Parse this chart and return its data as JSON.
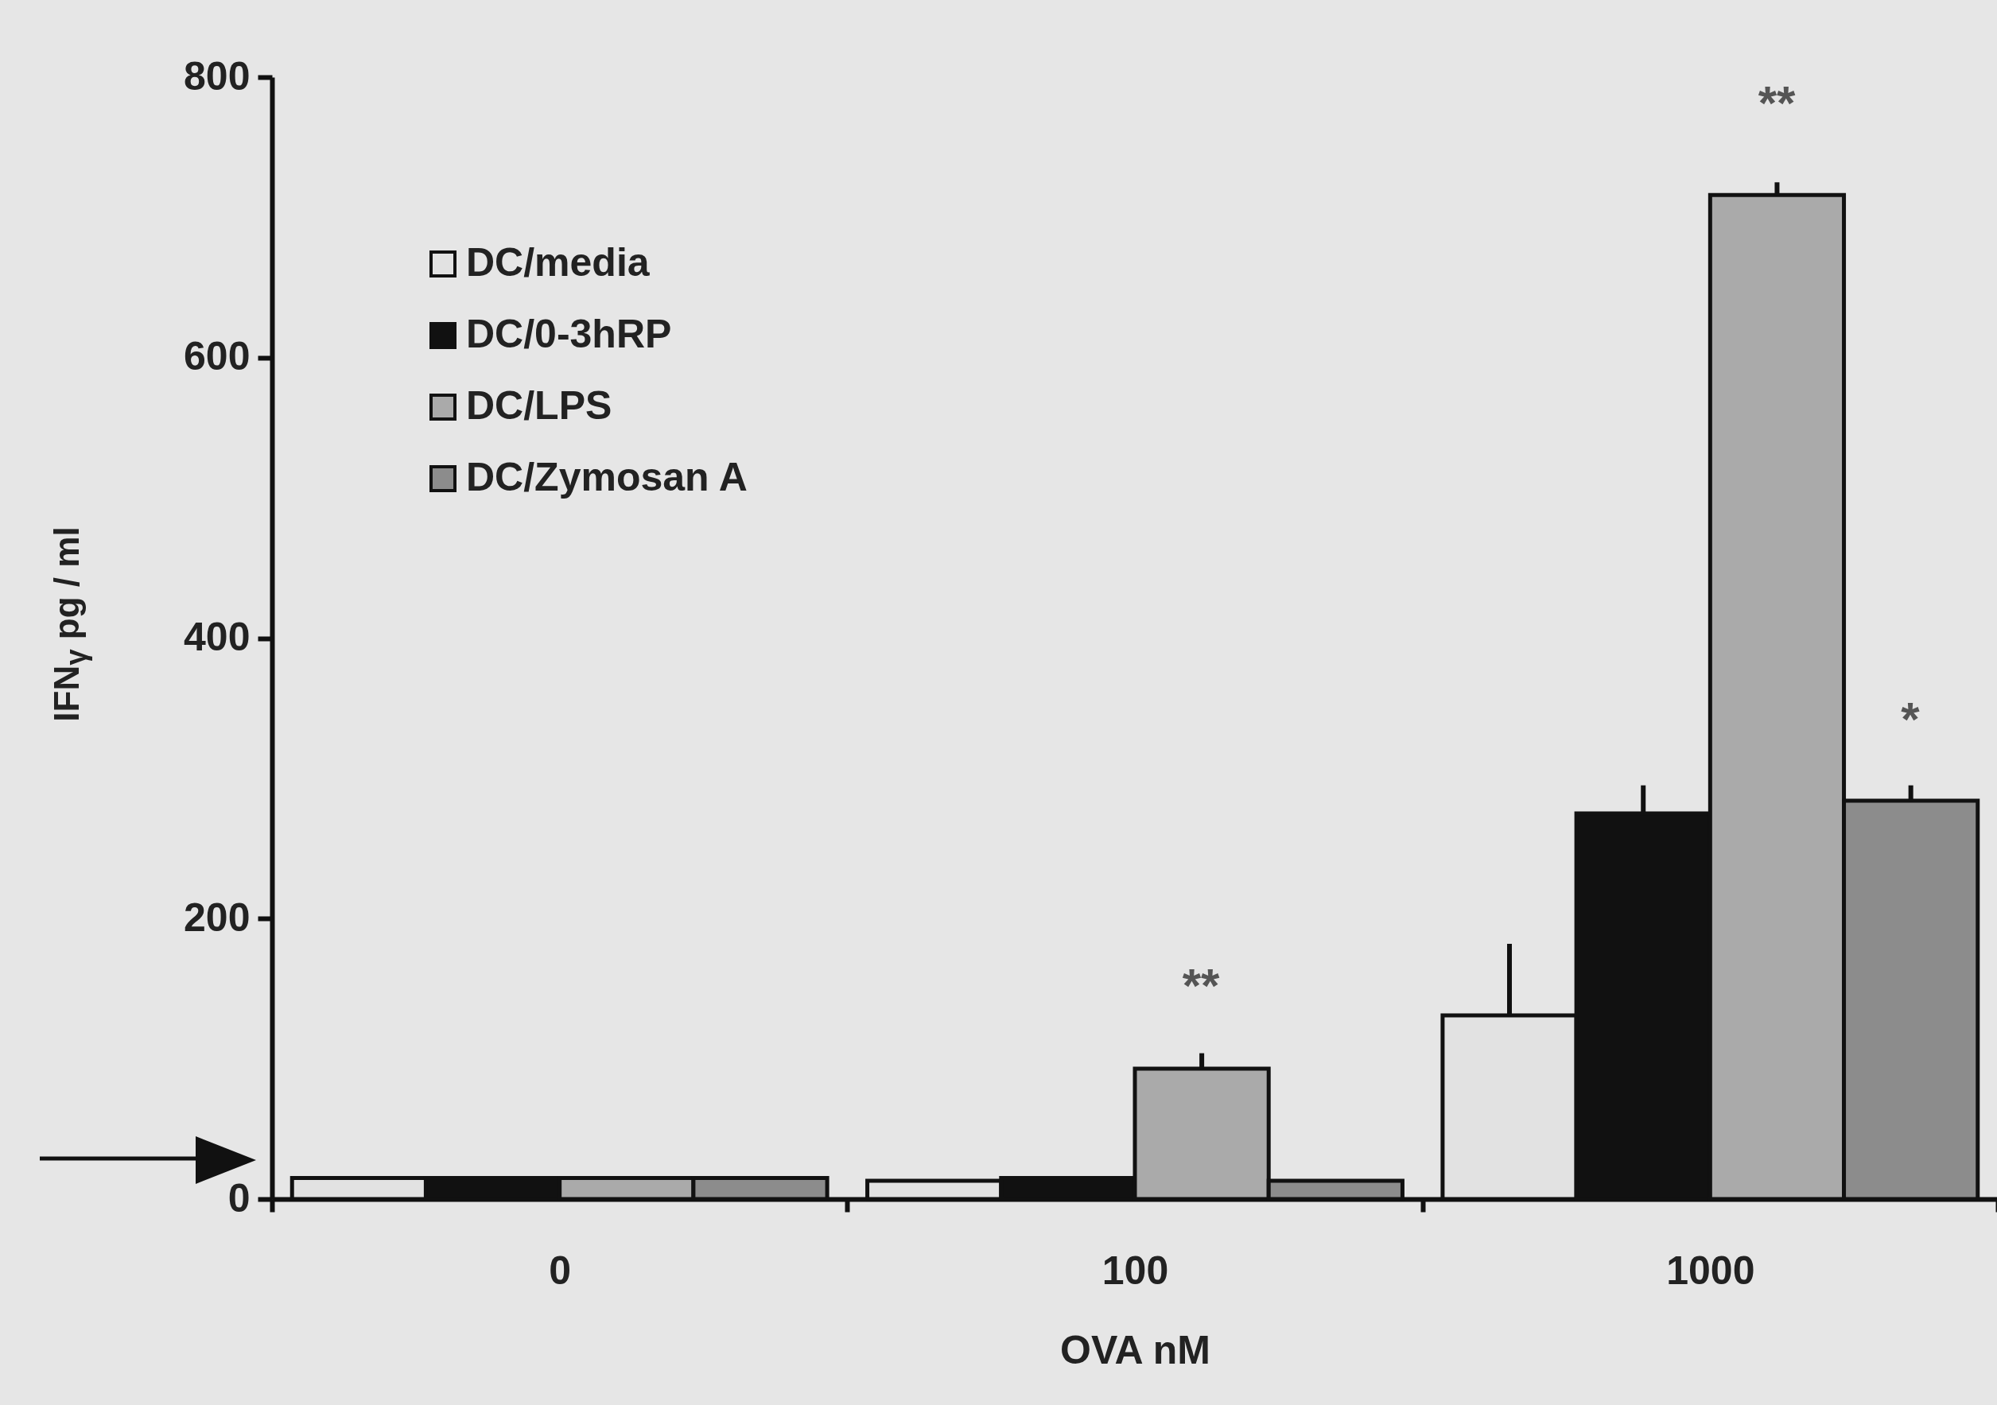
{
  "chart_data": {
    "type": "bar",
    "xlabel": "OVA nM",
    "ylabel": "IFN$_{γ}$ pg / ml",
    "categories": [
      "0",
      "100",
      "1000"
    ],
    "series": [
      {
        "name": "DC/media",
        "color": "#e2e2e2",
        "values": [
          15,
          13,
          131
        ],
        "errors": [
          null,
          null,
          [
            131,
            182
          ]
        ]
      },
      {
        "name": "DC/0-3hRP",
        "color": "#111111",
        "values": [
          15,
          15,
          275
        ],
        "errors": [
          null,
          null,
          [
            275,
            295
          ]
        ]
      },
      {
        "name": "DC/LPS",
        "color": "#aaaaaa",
        "values": [
          15,
          93,
          716
        ],
        "errors": [
          null,
          [
            93,
            104
          ],
          [
            716,
            725
          ]
        ]
      },
      {
        "name": "DC/Zymosan A",
        "color": "#8c8c8c",
        "values": [
          15,
          13,
          284
        ],
        "errors": [
          null,
          null,
          [
            284,
            295
          ]
        ]
      }
    ],
    "ylim": [
      0,
      800
    ],
    "yticks": [
      0,
      200,
      400,
      600,
      800
    ],
    "grid": false,
    "legend": "top left",
    "annotations": [
      "**",
      "**",
      "*"
    ]
  }
}
